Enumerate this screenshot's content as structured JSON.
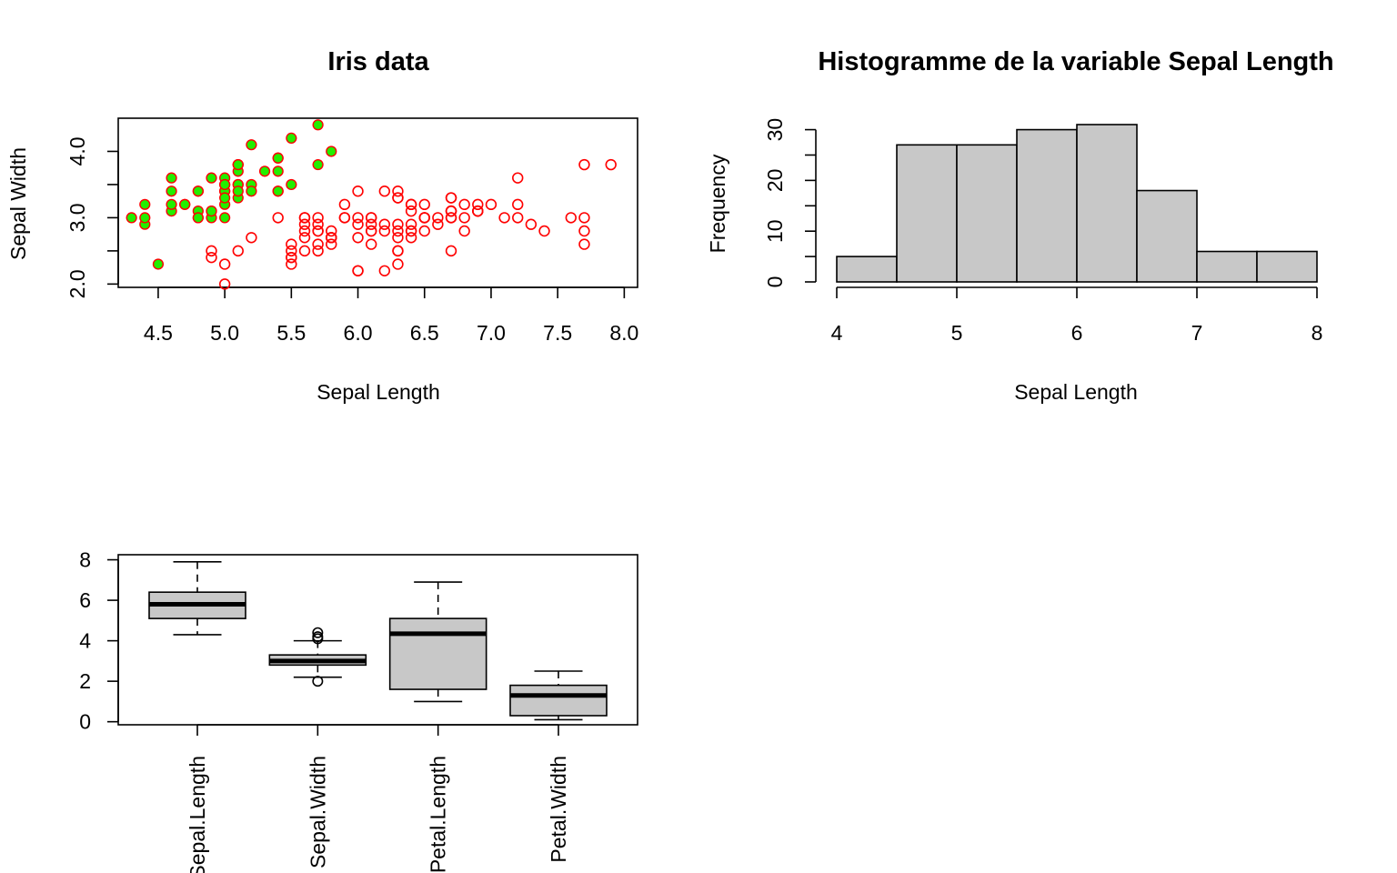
{
  "colors": {
    "setosa_fill": "#22ee00",
    "point_stroke": "#ff0000",
    "bar_fill": "#c8c8c8",
    "box_fill": "#c8c8c8"
  },
  "chart_data": [
    {
      "type": "scatter",
      "title": "Iris data",
      "xlabel": "Sepal Length",
      "ylabel": "Sepal Width",
      "xlim": [
        4.2,
        8.1
      ],
      "ylim": [
        1.95,
        4.5
      ],
      "xticks": [
        "4.5",
        "5.0",
        "5.5",
        "6.0",
        "6.5",
        "7.0",
        "7.5",
        "8.0"
      ],
      "yticks": [
        "2.0",
        "3.0",
        "4.0"
      ],
      "grid": false,
      "series": [
        {
          "marker": "filled green circle, red outline",
          "x": [
            5.1,
            4.9,
            4.7,
            4.6,
            5.0,
            5.4,
            4.6,
            5.0,
            4.4,
            4.9,
            5.4,
            4.8,
            4.8,
            4.3,
            5.8,
            5.7,
            5.4,
            5.1,
            5.7,
            5.1,
            5.4,
            5.1,
            4.6,
            5.1,
            4.8,
            5.0,
            5.0,
            5.2,
            5.2,
            4.7,
            4.8,
            5.4,
            5.2,
            5.5,
            4.9,
            5.0,
            5.5,
            4.9,
            4.4,
            5.1,
            5.0,
            4.5,
            4.4,
            5.0,
            5.1,
            4.8,
            5.1,
            4.6,
            5.3,
            5.0
          ],
          "y": [
            3.5,
            3.0,
            3.2,
            3.1,
            3.6,
            3.9,
            3.4,
            3.4,
            2.9,
            3.1,
            3.7,
            3.4,
            3.0,
            3.0,
            4.0,
            4.4,
            3.9,
            3.5,
            3.8,
            3.8,
            3.4,
            3.7,
            3.6,
            3.3,
            3.4,
            3.0,
            3.4,
            3.5,
            3.4,
            3.2,
            3.1,
            3.4,
            4.1,
            4.2,
            3.1,
            3.2,
            3.5,
            3.6,
            3.0,
            3.4,
            3.5,
            2.3,
            3.2,
            3.5,
            3.8,
            3.0,
            3.8,
            3.2,
            3.7,
            3.3
          ]
        },
        {
          "marker": "open red circle",
          "x": [
            7.0,
            6.4,
            6.9,
            5.5,
            6.5,
            5.7,
            6.3,
            4.9,
            6.6,
            5.2,
            5.0,
            5.9,
            6.0,
            6.1,
            5.6,
            6.7,
            5.6,
            5.8,
            6.2,
            5.6,
            5.9,
            6.1,
            6.3,
            6.1,
            6.4,
            6.6,
            6.8,
            6.7,
            6.0,
            5.7,
            5.5,
            5.5,
            5.8,
            6.0,
            5.4,
            6.0,
            6.7,
            6.3,
            5.6,
            5.5,
            5.5,
            6.1,
            5.8,
            5.0,
            5.6,
            5.7,
            5.7,
            6.2,
            5.1,
            5.7,
            6.3,
            5.8,
            7.1,
            6.3,
            6.5,
            7.6,
            4.9,
            7.3,
            6.7,
            7.2,
            6.5,
            6.4,
            6.8,
            5.7,
            5.8,
            6.4,
            6.5,
            7.7,
            7.7,
            6.0,
            6.9,
            5.6,
            7.7,
            6.3,
            6.7,
            7.2,
            6.2,
            6.1,
            6.4,
            7.2,
            7.4,
            7.9,
            6.4,
            6.3,
            6.1,
            7.7,
            6.3,
            6.4,
            6.0,
            6.9,
            6.7,
            6.9,
            5.8,
            6.8,
            6.7,
            6.7,
            6.3,
            6.5,
            6.2,
            5.9
          ],
          "y": [
            3.2,
            3.2,
            3.1,
            2.3,
            2.8,
            2.8,
            3.3,
            2.4,
            2.9,
            2.7,
            2.0,
            3.0,
            2.2,
            2.9,
            2.9,
            3.1,
            3.0,
            2.7,
            2.2,
            2.5,
            3.2,
            2.8,
            2.5,
            2.8,
            2.9,
            3.0,
            2.8,
            3.0,
            2.9,
            2.6,
            2.4,
            2.4,
            2.7,
            2.7,
            3.0,
            3.4,
            3.1,
            2.3,
            3.0,
            2.5,
            2.6,
            3.0,
            2.6,
            2.3,
            2.7,
            3.0,
            2.9,
            2.9,
            2.5,
            2.8,
            3.3,
            2.7,
            3.0,
            2.9,
            3.0,
            3.0,
            2.5,
            2.9,
            2.5,
            3.6,
            3.2,
            2.7,
            3.0,
            2.5,
            2.8,
            3.2,
            3.0,
            3.8,
            2.6,
            2.2,
            3.2,
            2.8,
            2.8,
            2.7,
            3.3,
            3.2,
            2.8,
            3.0,
            2.8,
            3.0,
            2.8,
            3.8,
            2.8,
            2.8,
            2.6,
            3.0,
            3.4,
            3.1,
            3.0,
            3.1,
            3.1,
            3.1,
            2.7,
            3.2,
            3.3,
            3.0,
            2.5,
            3.0,
            3.4,
            3.0
          ]
        }
      ]
    },
    {
      "type": "bar",
      "subtype": "histogram",
      "title": "Histogramme de la variable Sepal Length",
      "xlabel": "Sepal Length",
      "ylabel": "Frequency",
      "bin_edges": [
        4,
        4.5,
        5,
        5.5,
        6,
        6.5,
        7,
        7.5,
        8
      ],
      "values": [
        5,
        27,
        27,
        30,
        31,
        18,
        6,
        6
      ],
      "xticks": [
        "4",
        "5",
        "6",
        "7",
        "8"
      ],
      "yticks": [
        "0",
        "10",
        "20",
        "30"
      ],
      "ylim": [
        0,
        31
      ]
    },
    {
      "type": "box",
      "categories": [
        "Sepal.Length",
        "Sepal.Width",
        "Petal.Length",
        "Petal.Width"
      ],
      "ylim": [
        -0.15,
        8.25
      ],
      "yticks": [
        "0",
        "2",
        "4",
        "6",
        "8"
      ],
      "boxes": [
        {
          "whisker_low": 4.3,
          "q1": 5.1,
          "median": 5.8,
          "q3": 6.4,
          "whisker_high": 7.9,
          "outliers": []
        },
        {
          "whisker_low": 2.2,
          "q1": 2.8,
          "median": 3.0,
          "q3": 3.3,
          "whisker_high": 4.0,
          "outliers": [
            2.0,
            4.1,
            4.2,
            4.4
          ]
        },
        {
          "whisker_low": 1.0,
          "q1": 1.6,
          "median": 4.35,
          "q3": 5.1,
          "whisker_high": 6.9,
          "outliers": []
        },
        {
          "whisker_low": 0.1,
          "q1": 0.3,
          "median": 1.3,
          "q3": 1.8,
          "whisker_high": 2.5,
          "outliers": []
        }
      ]
    }
  ]
}
